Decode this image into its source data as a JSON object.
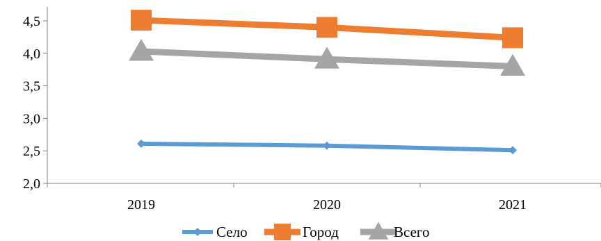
{
  "chart_data": {
    "type": "line",
    "categories": [
      "2019",
      "2020",
      "2021"
    ],
    "ylim": [
      2.0,
      4.5
    ],
    "yticks": [
      "2,0",
      "2,5",
      "3,0",
      "3,5",
      "4,0",
      "4,5"
    ],
    "grid": false,
    "legend_position": "bottom",
    "series": [
      {
        "name": "Село",
        "values": [
          2.61,
          2.58,
          2.51
        ],
        "color": "#5B9BD5",
        "marker": "diamond"
      },
      {
        "name": "Город",
        "values": [
          4.51,
          4.4,
          4.24
        ],
        "color": "#ED7D31",
        "marker": "square"
      },
      {
        "name": "Всего",
        "values": [
          4.03,
          3.91,
          3.8
        ],
        "color": "#A5A5A5",
        "marker": "triangle"
      }
    ]
  }
}
